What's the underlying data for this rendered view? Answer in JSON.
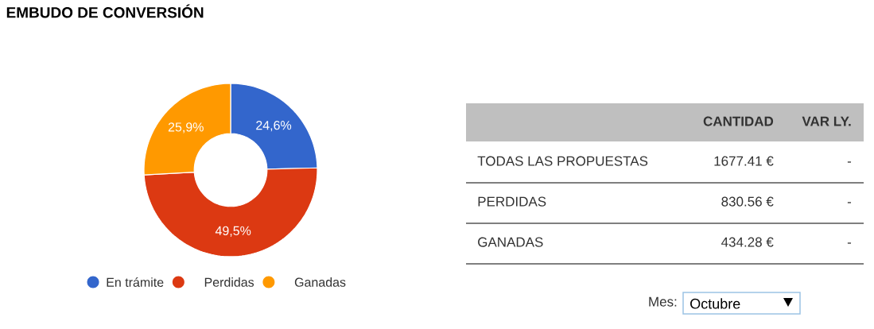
{
  "chart_data": [
    {
      "type": "donut",
      "title": "EMBUDO DE CONVERSIÓN",
      "categories": [
        "En trámite",
        "Perdidas",
        "Ganadas"
      ],
      "values": [
        24.6,
        49.5,
        25.9
      ],
      "colors": [
        "#3366cc",
        "#dc3912",
        "#ff9900"
      ],
      "value_labels": [
        "24,6%",
        "49,5%",
        "25,9%"
      ],
      "legend": "bottom"
    },
    {
      "type": "other",
      "annotations": [
        "CANTIDAD",
        "VAR LY.",
        "TODAS LAS PROPUESTAS",
        "1677.41 €",
        "-",
        "PERDIDAS",
        "830.56 €",
        "-",
        "GANADAS",
        "434.28 €",
        "-",
        "Mes:",
        "Octubre"
      ]
    }
  ]
}
